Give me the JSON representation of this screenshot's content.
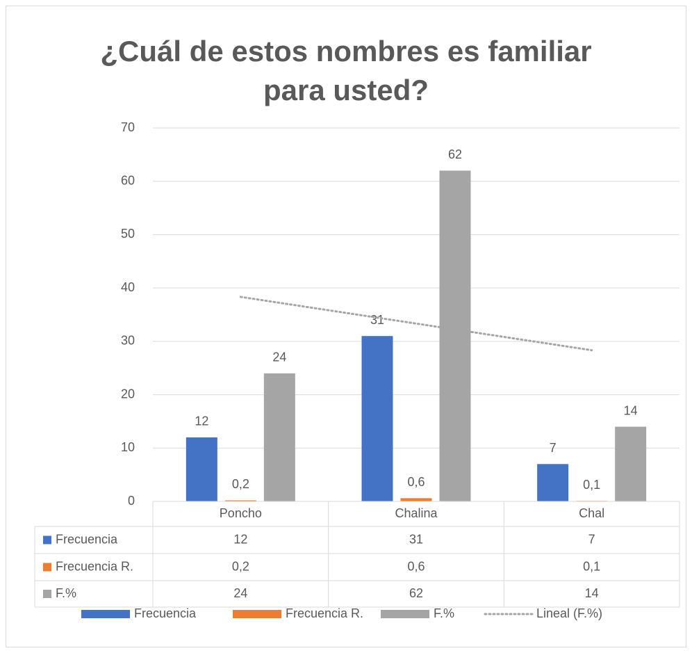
{
  "chart_data": {
    "type": "bar",
    "title": [
      "¿Cuál de estos nombres es familiar",
      "para usted?"
    ],
    "categories": [
      "Poncho",
      "Chalina",
      "Chal"
    ],
    "series": [
      {
        "name": "Frecuencia",
        "color": "#4472c4",
        "values": [
          12,
          31,
          7
        ]
      },
      {
        "name": "Frecuencia R.",
        "color": "#ed7d31",
        "values": [
          0.2,
          0.6,
          0.1
        ],
        "value_labels": [
          "0,2",
          "0,6",
          "0,1"
        ]
      },
      {
        "name": "F.%",
        "color": "#a5a5a5",
        "values": [
          24,
          62,
          14
        ],
        "trendline": {
          "type": "linear",
          "name": "Lineal (F.%)"
        }
      }
    ],
    "ylim": [
      0,
      70
    ],
    "yticks": [
      0,
      10,
      20,
      30,
      40,
      50,
      60,
      70
    ],
    "grid": true,
    "data_table": true,
    "legend": "bottom"
  }
}
